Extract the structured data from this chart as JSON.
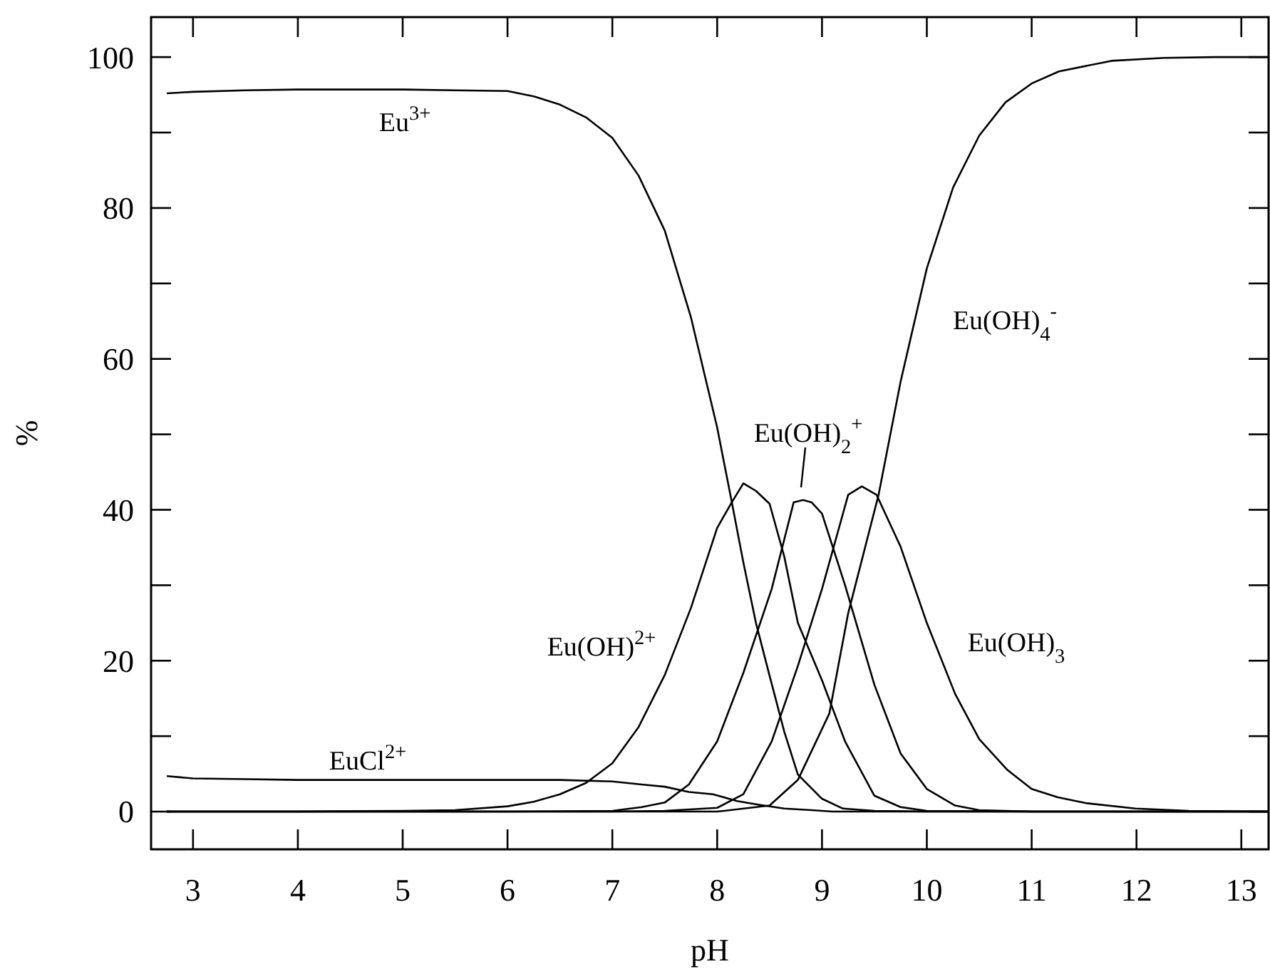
{
  "chart_data": {
    "type": "line",
    "xlabel": "pH",
    "ylabel": "%",
    "xlim": [
      2.6,
      13.26
    ],
    "ylim": [
      -5,
      105.3
    ],
    "xticks": [
      3,
      4,
      5,
      6,
      7,
      8,
      9,
      10,
      11,
      12,
      13
    ],
    "yticks": [
      0,
      {
        "value": 10,
        "label": null
      },
      20,
      {
        "value": 30,
        "label": null
      },
      40,
      {
        "value": 50,
        "label": null
      },
      60,
      {
        "value": 70,
        "label": null
      },
      80,
      {
        "value": 90,
        "label": null
      },
      100
    ],
    "grid": false,
    "marker": "none",
    "line_style": "solid",
    "series": [
      {
        "name": "Eu$^{3+}$",
        "color": "#000000",
        "x": [
          2.75,
          3,
          3.5,
          4,
          4.5,
          5,
          5.5,
          6,
          6.25,
          6.5,
          6.75,
          7,
          7.25,
          7.5,
          7.75,
          8,
          8.14,
          8.25,
          8.37,
          8.5,
          8.64,
          8.77,
          9,
          9.2,
          9.5,
          10,
          11,
          12,
          13.26
        ],
        "values": [
          95.2,
          95.4,
          95.6,
          95.7,
          95.7,
          95.7,
          95.6,
          95.5,
          94.8,
          93.7,
          92,
          89.3,
          84.3,
          77,
          65.5,
          50.9,
          41,
          33,
          25,
          18,
          10.6,
          4.9,
          1.7,
          0.4,
          0.1,
          0,
          0,
          0,
          0
        ]
      },
      {
        "name": "EuCl$^{2+}$",
        "color": "#000000",
        "x": [
          2.75,
          3,
          3.5,
          4,
          5,
          6,
          6.5,
          7,
          7.28,
          7.5,
          7.73,
          7.96,
          8.19,
          8.4,
          8.64,
          8.9,
          9.1,
          9.5,
          10,
          11,
          12,
          13.26
        ],
        "values": [
          4.7,
          4.4,
          4.3,
          4.2,
          4.2,
          4.2,
          4.2,
          4.0,
          3.6,
          3.3,
          2.6,
          2.3,
          1.4,
          0.9,
          0.4,
          0.2,
          0,
          0,
          0,
          0,
          0,
          0
        ]
      },
      {
        "name": "Eu(OH)$^{2+}$",
        "color": "#000000",
        "x": [
          2.75,
          4,
          5,
          5.5,
          6,
          6.25,
          6.5,
          6.75,
          7,
          7.25,
          7.5,
          7.75,
          8,
          8.14,
          8.25,
          8.37,
          8.5,
          8.64,
          8.77,
          9,
          9.22,
          9.5,
          9.75,
          10,
          11,
          12,
          13.26
        ],
        "values": [
          0,
          0,
          0.1,
          0.2,
          0.7,
          1.3,
          2.3,
          3.8,
          6.4,
          11.2,
          18.1,
          27,
          37.6,
          41,
          43.5,
          42.5,
          40.8,
          33.8,
          25,
          17.4,
          9.3,
          2.1,
          0.6,
          0.1,
          0,
          0,
          0
        ]
      },
      {
        "name": "Eu(OH)$_{2}$$^{+}$",
        "color": "#000000",
        "x": [
          2.75,
          5,
          6,
          7,
          7.28,
          7.5,
          7.73,
          8,
          8.25,
          8.52,
          8.73,
          8.82,
          8.9,
          9,
          9.22,
          9.5,
          9.75,
          10,
          10.27,
          10.5,
          11,
          12,
          13.26
        ],
        "values": [
          0,
          0,
          0,
          0.1,
          0.6,
          1.2,
          3.6,
          9.3,
          18.4,
          29.5,
          41,
          41.3,
          41,
          39.5,
          30,
          16.8,
          7.7,
          3,
          0.8,
          0.2,
          0,
          0,
          0
        ]
      },
      {
        "name": "Eu(OH)$_{3}$",
        "color": "#000000",
        "x": [
          2.75,
          5,
          7,
          7.5,
          8,
          8.25,
          8.52,
          8.77,
          9,
          9.25,
          9.38,
          9.52,
          9.75,
          10,
          10.27,
          10.5,
          10.77,
          11,
          11.25,
          11.53,
          11.99,
          12.5,
          13.26
        ],
        "values": [
          0,
          0,
          0,
          0.1,
          0.5,
          2.3,
          9.3,
          19.3,
          29.5,
          42,
          43.1,
          42,
          35.1,
          25,
          15.6,
          9.6,
          5.5,
          3,
          1.9,
          1.1,
          0.4,
          0.1,
          0
        ]
      },
      {
        "name": "Eu(OH)$_{4}$$^{-}$",
        "color": "#000000",
        "x": [
          2.75,
          5,
          7,
          8,
          8.5,
          8.77,
          9.07,
          9.25,
          9.54,
          9.75,
          10,
          10.25,
          10.5,
          10.75,
          11,
          11.26,
          11.76,
          12.26,
          12.75,
          13.26
        ],
        "values": [
          0,
          0,
          0,
          0,
          0.8,
          4.2,
          13,
          26.3,
          42,
          57,
          72,
          82.7,
          89.6,
          94,
          96.5,
          98.1,
          99.5,
          99.9,
          100,
          100
        ]
      }
    ]
  }
}
